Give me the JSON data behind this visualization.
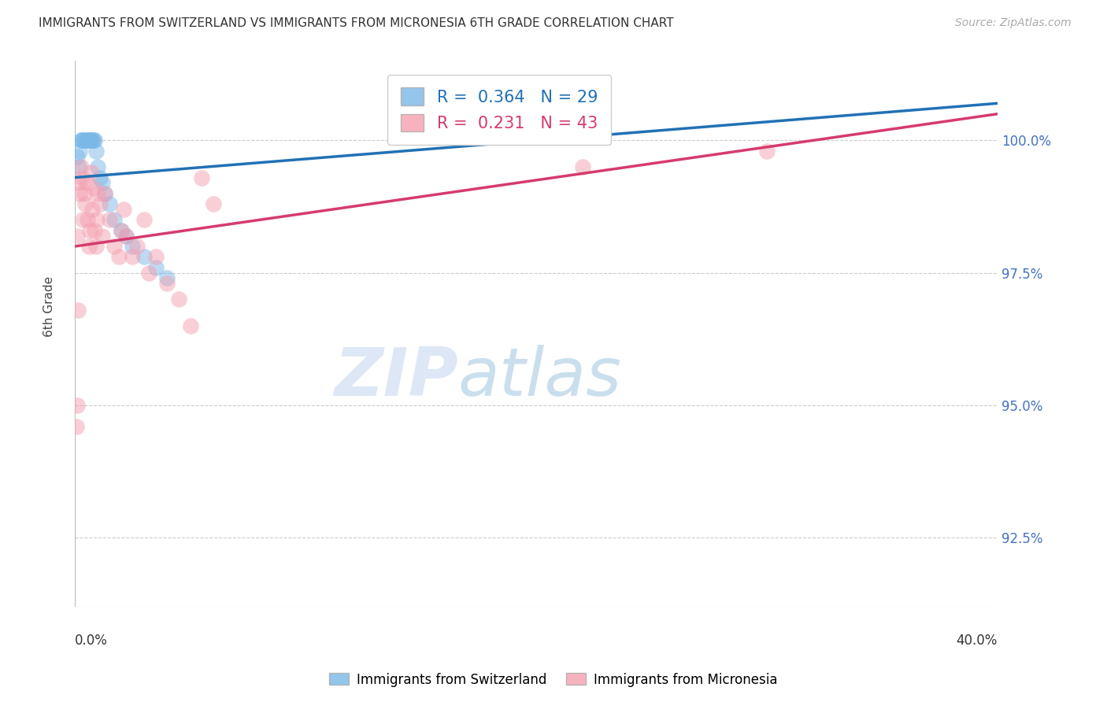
{
  "title": "IMMIGRANTS FROM SWITZERLAND VS IMMIGRANTS FROM MICRONESIA 6TH GRADE CORRELATION CHART",
  "source": "Source: ZipAtlas.com",
  "xlabel_bottom_left": "0.0%",
  "xlabel_bottom_right": "40.0%",
  "ylabel": "6th Grade",
  "y_ticks": [
    92.5,
    95.0,
    97.5,
    100.0
  ],
  "y_tick_labels": [
    "92.5%",
    "95.0%",
    "97.5%",
    "100.0%"
  ],
  "xlim": [
    0.0,
    40.0
  ],
  "ylim": [
    91.2,
    101.5
  ],
  "switzerland_R": 0.364,
  "switzerland_N": 29,
  "micronesia_R": 0.231,
  "micronesia_N": 43,
  "switzerland_color": "#7ab8e8",
  "micronesia_color": "#f4a0b0",
  "switzerland_line_color": "#2171b5",
  "micronesia_line_color": "#d63b6e",
  "legend_label_switzerland": "Immigrants from Switzerland",
  "legend_label_micronesia": "Immigrants from Micronesia",
  "switzerland_x": [
    0.1,
    0.15,
    0.2,
    0.25,
    0.3,
    0.35,
    0.4,
    0.5,
    0.55,
    0.6,
    0.65,
    0.7,
    0.75,
    0.8,
    0.85,
    0.9,
    1.0,
    1.1,
    1.2,
    1.3,
    1.5,
    1.7,
    2.0,
    2.2,
    2.5,
    3.0,
    3.5,
    4.0,
    22.0
  ],
  "switzerland_y": [
    99.7,
    99.5,
    99.8,
    100.0,
    100.0,
    100.0,
    100.0,
    100.0,
    100.0,
    100.0,
    100.0,
    100.0,
    100.0,
    100.0,
    100.0,
    99.8,
    99.5,
    99.3,
    99.2,
    99.0,
    98.8,
    98.5,
    98.3,
    98.2,
    98.0,
    97.8,
    97.6,
    97.4,
    100.3
  ],
  "micronesia_x": [
    0.05,
    0.1,
    0.15,
    0.2,
    0.25,
    0.3,
    0.35,
    0.4,
    0.45,
    0.5,
    0.55,
    0.6,
    0.65,
    0.7,
    0.75,
    0.8,
    0.85,
    0.9,
    0.95,
    1.0,
    1.1,
    1.2,
    1.3,
    1.5,
    1.7,
    1.9,
    2.0,
    2.1,
    2.2,
    2.5,
    2.7,
    3.0,
    3.2,
    3.5,
    4.0,
    4.5,
    5.0,
    5.5,
    6.0,
    30.0,
    22.0,
    0.08,
    0.12
  ],
  "micronesia_y": [
    94.6,
    98.2,
    99.2,
    99.0,
    99.5,
    99.3,
    98.5,
    99.0,
    98.8,
    99.2,
    98.5,
    98.0,
    98.3,
    99.4,
    98.7,
    99.1,
    98.3,
    98.0,
    98.5,
    99.0,
    98.8,
    98.2,
    99.0,
    98.5,
    98.0,
    97.8,
    98.3,
    98.7,
    98.2,
    97.8,
    98.0,
    98.5,
    97.5,
    97.8,
    97.3,
    97.0,
    96.5,
    99.3,
    98.8,
    99.8,
    99.5,
    95.0,
    96.8
  ],
  "sw_line_x0": 0.0,
  "sw_line_y0": 99.3,
  "sw_line_x1": 40.0,
  "sw_line_y1": 100.7,
  "mc_line_x0": 0.0,
  "mc_line_y0": 98.0,
  "mc_line_x1": 40.0,
  "mc_line_y1": 100.5,
  "watermark_zip": "ZIP",
  "watermark_atlas": "atlas",
  "background_color": "#ffffff",
  "grid_color": "#cccccc"
}
